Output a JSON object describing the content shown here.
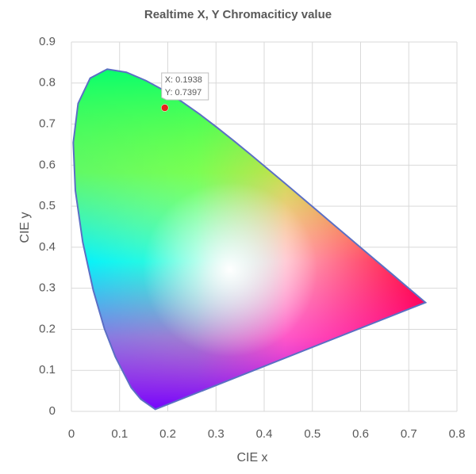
{
  "chart_data": {
    "type": "scatter",
    "title": "Realtime X, Y Chromaciticy value",
    "x_label": "CIE x",
    "y_label": "CIE y",
    "xlim": [
      0,
      0.8
    ],
    "xticks": [
      0,
      0.1,
      0.2,
      0.3,
      0.4,
      0.5,
      0.6,
      0.7,
      0.8
    ],
    "ylim": [
      0,
      0.9
    ],
    "yticks": [
      0,
      0.1,
      0.2,
      0.3,
      0.4,
      0.5,
      0.6,
      0.7,
      0.8,
      0.9
    ],
    "grid": true,
    "boundary": {
      "color": "#5b6fc4",
      "x": [
        0.1741,
        0.144,
        0.1241,
        0.0913,
        0.0687,
        0.0454,
        0.0235,
        0.0082,
        0.0039,
        0.0139,
        0.0389,
        0.0743,
        0.1142,
        0.1547,
        0.1929,
        0.2296,
        0.2658,
        0.3016,
        0.3373,
        0.3731,
        0.4087,
        0.4441,
        0.4788,
        0.5125,
        0.5448,
        0.5752,
        0.6029,
        0.627,
        0.6482,
        0.6658,
        0.6915,
        0.7347
      ],
      "y": [
        0.005,
        0.0297,
        0.0578,
        0.1327,
        0.2007,
        0.295,
        0.4127,
        0.5384,
        0.6548,
        0.7502,
        0.812,
        0.8338,
        0.8262,
        0.8059,
        0.7816,
        0.7543,
        0.7243,
        0.6923,
        0.6589,
        0.6245,
        0.5896,
        0.5547,
        0.5202,
        0.4866,
        0.4544,
        0.4242,
        0.3965,
        0.3725,
        0.3514,
        0.334,
        0.3083,
        0.2653
      ]
    },
    "series": [
      {
        "color": "#e8221c",
        "x": [
          0.1938
        ],
        "values": [
          0.7397
        ],
        "annotations": [
          "X: 0.1938",
          "Y: 0.7397"
        ]
      }
    ]
  }
}
